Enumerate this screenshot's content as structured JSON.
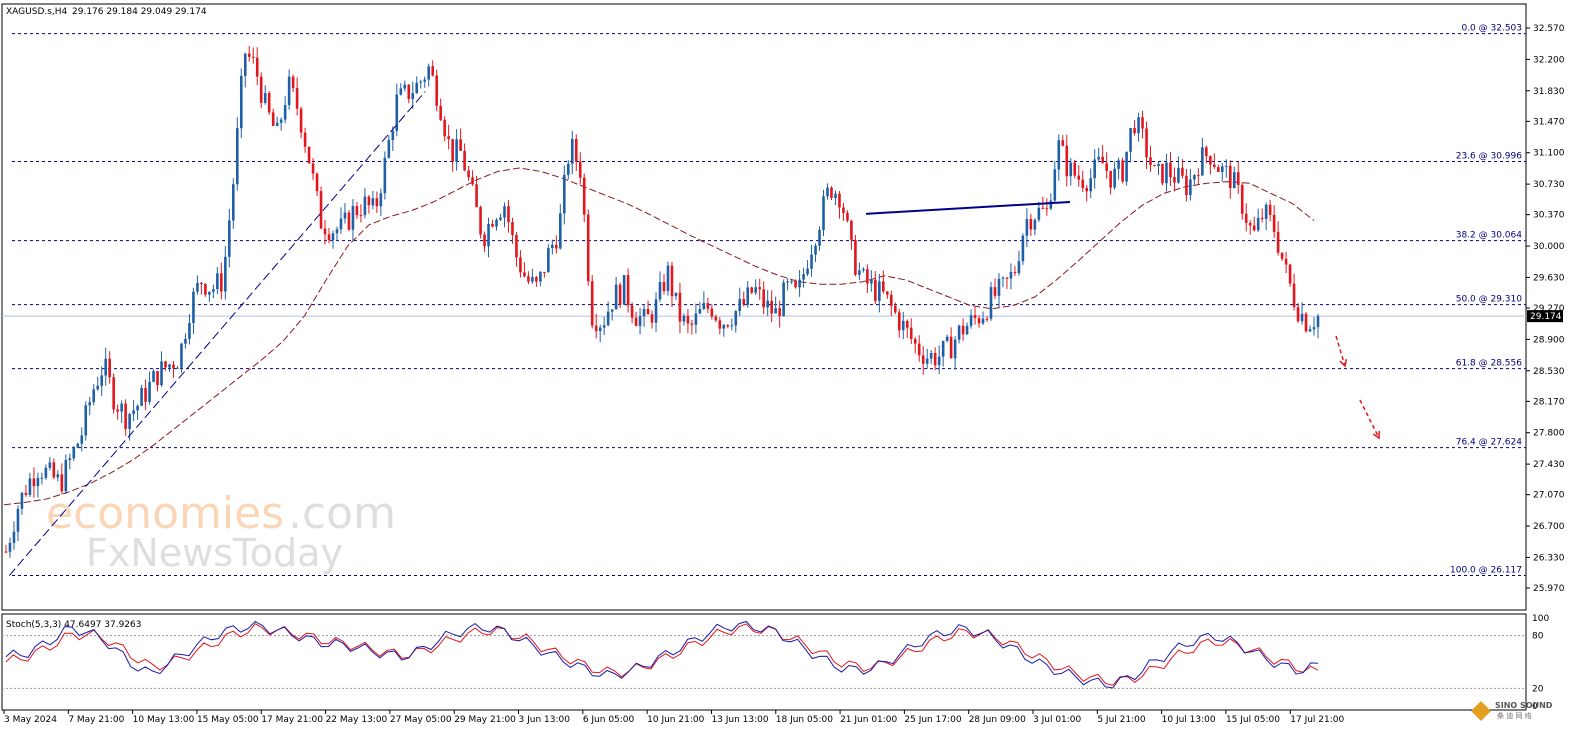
{
  "header": {
    "symbol": "XAGUSD.s,H4",
    "ohlc": "29.176 29.184 29.049 29.174"
  },
  "watermark": {
    "brand_main": "economies",
    "brand_tld": ".com",
    "brand_sub": "FxNewsToday"
  },
  "corner_logo": {
    "text": "SINO SOUND",
    "sub": "桑 迪 网 络"
  },
  "colors": {
    "bull": "#1f5fa8",
    "bear": "#e2171e",
    "ma": "#8b1a1a",
    "fib": "#00007f",
    "trend": "#00008b",
    "stoch_main": "#1a1aa8",
    "stoch_signal": "#e2171e",
    "price_line": "#b0c4de"
  },
  "chart_data": {
    "type": "candlestick",
    "timeframe": "H4",
    "ylim": [
      25.97,
      32.57
    ],
    "price_ticks": [
      "32.570",
      "32.200",
      "31.830",
      "31.470",
      "31.100",
      "30.730",
      "30.370",
      "30.000",
      "29.630",
      "29.270",
      "28.900",
      "28.530",
      "28.170",
      "27.800",
      "27.430",
      "27.070",
      "26.700",
      "26.330",
      "25.970"
    ],
    "current_price": "29.174",
    "time_labels": [
      "3 May 2024",
      "7 May 21:00",
      "10 May 13:00",
      "15 May 05:00",
      "17 May 21:00",
      "22 May 13:00",
      "27 May 05:00",
      "29 May 21:00",
      "3 Jun 13:00",
      "6 Jun 05:00",
      "10 Jun 21:00",
      "13 Jun 13:00",
      "18 Jun 05:00",
      "21 Jun 01:00",
      "25 Jun 17:00",
      "28 Jun 09:00",
      "3 Jul 01:00",
      "5 Jul 21:00",
      "10 Jul 13:00",
      "15 Jul 05:00",
      "17 Jul 21:00"
    ],
    "fibonacci": [
      {
        "label": "0.0 @ 32.503",
        "price": 32.503
      },
      {
        "label": "23.6 @ 30.996",
        "price": 30.996
      },
      {
        "label": "38.2 @ 30.064",
        "price": 30.064
      },
      {
        "label": "50.0 @ 29.310",
        "price": 29.31
      },
      {
        "label": "61.8 @ 28.556",
        "price": 28.556
      },
      {
        "label": "76.4 @ 27.624",
        "price": 27.624
      },
      {
        "label": "100.0 @ 26.117",
        "price": 26.117
      }
    ],
    "close_path": [
      26.4,
      26.9,
      27.2,
      27.4,
      27.3,
      27.2,
      27.5,
      27.8,
      28.3,
      28.6,
      28.2,
      28.0,
      28.1,
      28.3,
      28.5,
      28.6,
      28.7,
      29.3,
      29.6,
      29.5,
      29.6,
      30.8,
      32.3,
      32.1,
      31.6,
      31.3,
      31.9,
      31.6,
      31.0,
      30.3,
      30.2,
      30.2,
      30.4,
      30.5,
      30.4,
      31.0,
      31.7,
      31.8,
      31.9,
      32.1,
      31.7,
      31.1,
      31.1,
      30.6,
      30.1,
      30.4,
      30.5,
      29.9,
      29.6,
      29.5,
      29.9,
      30.2,
      31.2,
      30.9,
      29.2,
      29.1,
      29.4,
      29.5,
      29.2,
      29.1,
      29.3,
      29.7,
      29.2,
      29.0,
      29.2,
      29.3,
      29.1,
      29.2,
      29.3,
      29.5,
      29.3,
      29.2,
      29.5,
      29.4,
      29.9,
      30.3,
      30.7,
      30.6,
      29.9,
      29.6,
      29.5,
      29.4,
      29.2,
      29.0,
      28.8,
      28.7,
      28.7,
      28.8,
      29.0,
      29.1,
      29.2,
      29.4,
      29.5,
      29.7,
      30.3,
      30.4,
      30.4,
      31.2,
      30.9,
      30.8,
      30.8,
      31.0,
      30.8,
      30.9,
      31.5,
      31.2,
      30.8,
      30.9,
      30.8,
      30.7,
      31.0,
      31.1,
      30.9,
      30.8,
      30.5,
      30.1,
      30.4,
      30.2,
      29.7,
      29.3,
      29.1,
      29.17
    ],
    "moving_average": [
      26.95,
      26.98,
      27.02,
      27.1,
      27.2,
      27.33,
      27.48,
      27.66,
      27.86,
      28.06,
      28.26,
      28.46,
      28.66,
      28.88,
      29.18,
      29.6,
      30.0,
      30.25,
      30.35,
      30.42,
      30.52,
      30.65,
      30.78,
      30.88,
      30.92,
      30.88,
      30.8,
      30.7,
      30.6,
      30.5,
      30.38,
      30.25,
      30.12,
      30.0,
      29.88,
      29.76,
      29.66,
      29.58,
      29.55,
      29.55,
      29.58,
      29.65,
      29.6,
      29.5,
      29.4,
      29.3,
      29.26,
      29.3,
      29.4,
      29.6,
      29.82,
      30.05,
      30.28,
      30.48,
      30.62,
      30.7,
      30.74,
      30.76,
      30.74,
      30.62,
      30.5,
      30.3
    ],
    "trendlines": [
      {
        "from": [
          0.004,
          26.117
        ],
        "to": [
          0.32,
          31.82
        ],
        "style": "dashed"
      },
      {
        "from": [
          0.655,
          30.38
        ],
        "to": [
          0.81,
          30.52
        ],
        "style": "solid"
      }
    ],
    "forecast_arrows": 2,
    "stochastic": {
      "label": "Stoch(5,3,3) 47.6497 37.9263",
      "levels": [
        "100",
        "80",
        "20",
        "0"
      ],
      "main": [
        56,
        60,
        72,
        88,
        84,
        70,
        48,
        36,
        52,
        66,
        80,
        88,
        92,
        86,
        80,
        72,
        70,
        66,
        60,
        56,
        64,
        78,
        86,
        90,
        84,
        72,
        60,
        50,
        40,
        34,
        40,
        50,
        62,
        74,
        86,
        92,
        90,
        84,
        70,
        56,
        44,
        40,
        46,
        60,
        74,
        84,
        88,
        82,
        70,
        56,
        44,
        36,
        28,
        24,
        32,
        48,
        62,
        74,
        80,
        72,
        60,
        48,
        40,
        46
      ],
      "signal": [
        50,
        56,
        66,
        80,
        82,
        74,
        58,
        44,
        50,
        60,
        72,
        82,
        88,
        86,
        82,
        76,
        72,
        68,
        62,
        58,
        62,
        72,
        80,
        86,
        84,
        76,
        64,
        54,
        44,
        38,
        40,
        48,
        58,
        70,
        80,
        88,
        88,
        84,
        74,
        62,
        50,
        44,
        46,
        56,
        68,
        78,
        84,
        82,
        74,
        62,
        50,
        40,
        32,
        28,
        30,
        40,
        54,
        66,
        74,
        70,
        62,
        52,
        44,
        38
      ]
    }
  }
}
